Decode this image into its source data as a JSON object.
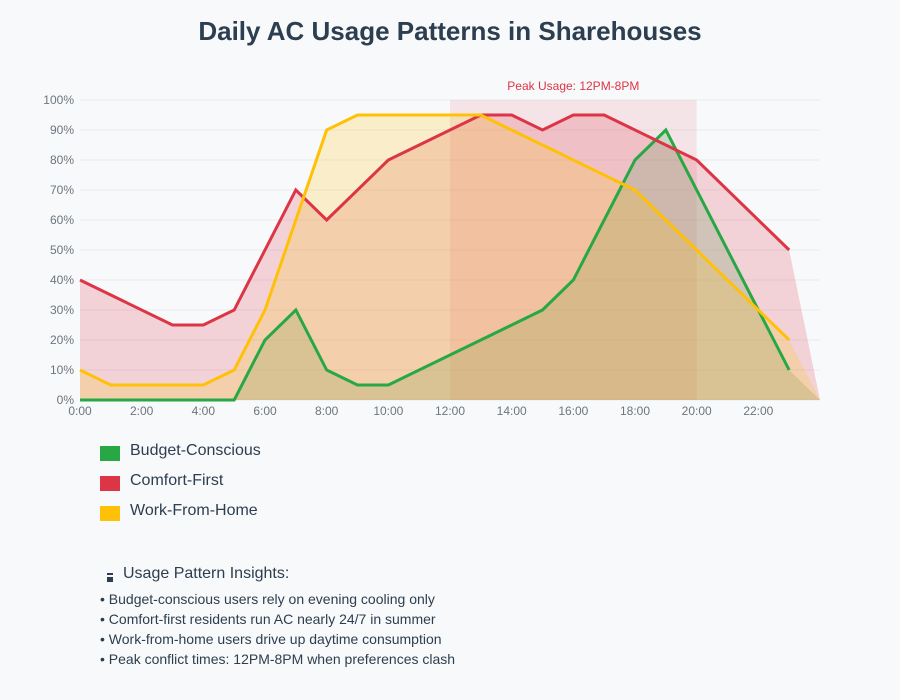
{
  "chart_data": {
    "type": "area",
    "title": "Daily AC Usage Patterns in Sharehouses",
    "xlabel": "",
    "ylabel": "",
    "x_range_hours": [
      0,
      24
    ],
    "ylim": [
      0,
      100
    ],
    "x_tick_labels": [
      "0:00",
      "2:00",
      "4:00",
      "6:00",
      "8:00",
      "10:00",
      "12:00",
      "14:00",
      "16:00",
      "18:00",
      "20:00",
      "22:00"
    ],
    "y_tick_labels": [
      "0%",
      "10%",
      "20%",
      "30%",
      "40%",
      "50%",
      "60%",
      "70%",
      "80%",
      "90%",
      "100%"
    ],
    "grid": true,
    "legend_position": "bottom-left",
    "series": [
      {
        "name": "Budget-Conscious",
        "color": "#28a745",
        "x": [
          0,
          5,
          6,
          7,
          8,
          9,
          10,
          15,
          16,
          18,
          19,
          23
        ],
        "y": [
          0,
          0,
          20,
          30,
          10,
          5,
          5,
          30,
          40,
          80,
          90,
          10
        ]
      },
      {
        "name": "Comfort-First",
        "color": "#dc3545",
        "x": [
          0,
          3,
          4,
          5,
          7,
          8,
          10,
          13,
          14,
          15,
          16,
          17,
          20,
          23
        ],
        "y": [
          40,
          25,
          25,
          30,
          70,
          60,
          80,
          95,
          95,
          90,
          95,
          95,
          80,
          50
        ]
      },
      {
        "name": "Work-From-Home",
        "color": "#ffc107",
        "x": [
          0,
          1,
          4,
          5,
          6,
          8,
          9,
          13,
          18,
          23
        ],
        "y": [
          10,
          5,
          5,
          10,
          30,
          90,
          95,
          95,
          70,
          20
        ]
      }
    ],
    "annotation": {
      "label": "Peak Usage: 12PM-8PM",
      "x_start": 12,
      "x_end": 20,
      "color": "#dc3545"
    }
  },
  "insights": {
    "icon": "thermometer-icon",
    "title": "Usage Pattern Insights:",
    "items": [
      "• Budget-conscious users rely on evening cooling only",
      "• Comfort-first residents run AC nearly 24/7 in summer",
      "• Work-from-home users drive up daytime consumption",
      "• Peak conflict times: 12PM-8PM when preferences clash"
    ]
  }
}
